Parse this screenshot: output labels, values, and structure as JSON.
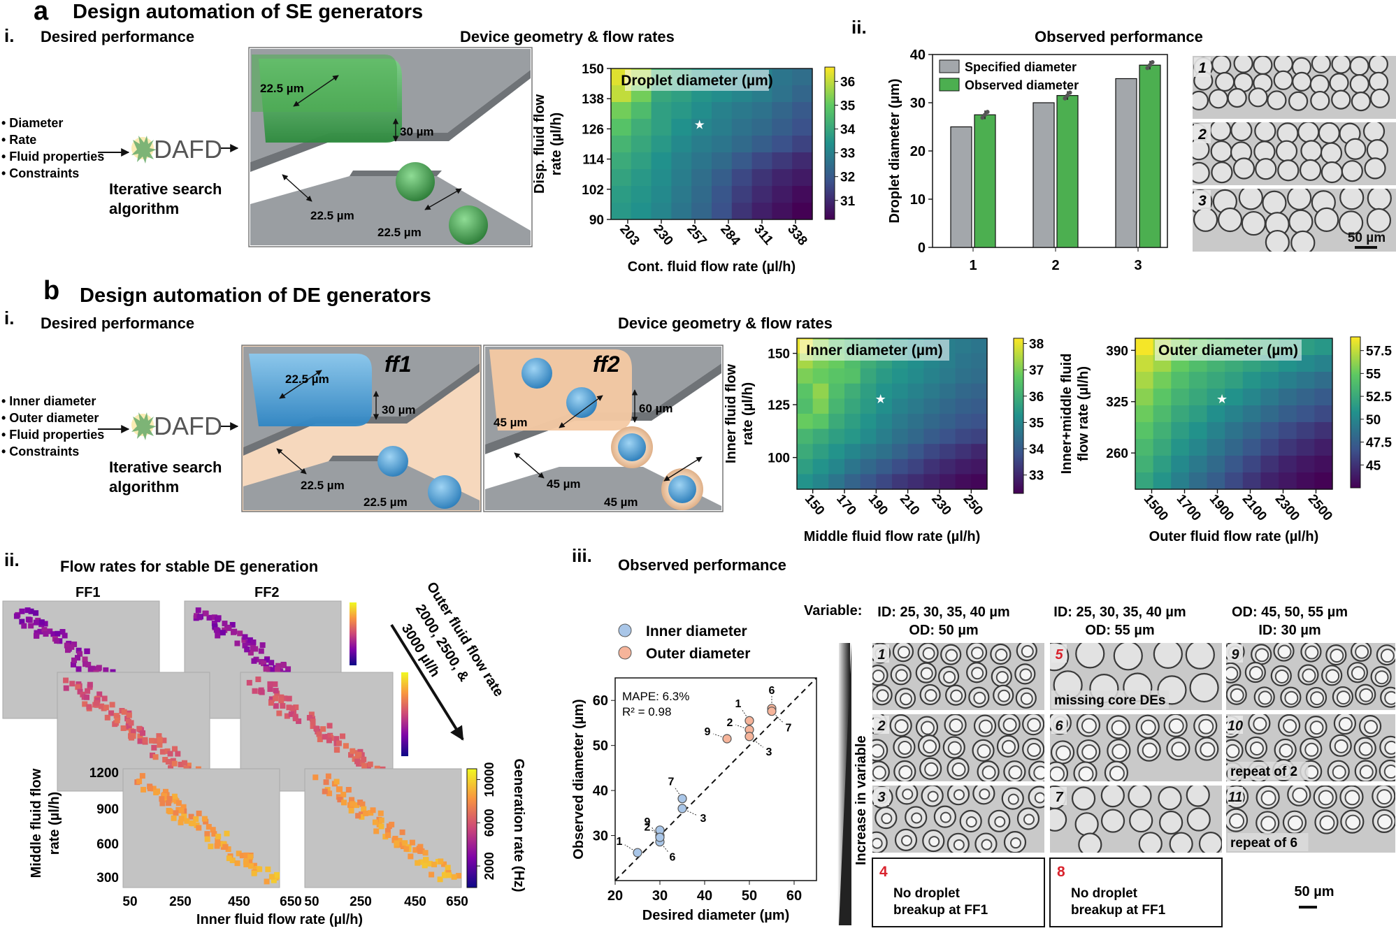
{
  "panel_a": {
    "letter": "a",
    "title": "Design automation of SE generators",
    "sub_i": "i.",
    "sub_ii": "ii.",
    "desired_title": "Desired performance",
    "inputs": [
      "• Diameter",
      "• Rate",
      "• Fluid properties",
      "• Constraints"
    ],
    "dafd": "DAFD",
    "algo_1": "Iterative search",
    "algo_2": "algorithm",
    "geometry_title": "Device geometry & flow rates",
    "device_dims": {
      "w1": "22.5 µm",
      "h": "30 µm",
      "w2": "22.5 µm",
      "w3": "22.5 µm"
    },
    "observed_title": "Observed performance",
    "micrograph_labels": [
      "1",
      "2",
      "3"
    ],
    "scale_bar": "50 µm"
  },
  "panel_b": {
    "letter": "b",
    "title": "Design automation of DE generators",
    "sub_i": "i.",
    "sub_ii": "ii.",
    "sub_iii": "iii.",
    "desired_title": "Desired performance",
    "inputs": [
      "• Inner diameter",
      "• Outer diameter",
      "• Fluid properties",
      "• Constraints"
    ],
    "dafd": "DAFD",
    "algo_1": "Iterative search",
    "algo_2": "algorithm",
    "geometry_title": "Device geometry & flow rates",
    "ff1": {
      "label": "ff1",
      "w1": "22.5 µm",
      "h": "30 µm",
      "w2": "22.5 µm",
      "w3": "22.5 µm"
    },
    "ff2": {
      "label": "ff2",
      "w1": "45 µm",
      "h": "60 µm",
      "w2": "45 µm",
      "w3": "45 µm"
    },
    "stable_title": "Flow rates for stable DE generation",
    "ff1_label": "FF1",
    "ff2_label": "FF2",
    "outer_arrow_text": [
      "Outer fluid flow rate",
      "2000, 2500, &",
      "3000 µl/h"
    ],
    "observed_title": "Observed performance",
    "variable_label": "Variable:",
    "columns": [
      {
        "line1": "ID: 25, 30, 35, 40 µm",
        "line2": "OD: 50 µm"
      },
      {
        "line1": "ID: 25, 30, 35, 40 µm",
        "line2": "OD: 55 µm"
      },
      {
        "line1": "OD: 45, 50, 55 µm",
        "line2": "ID: 30 µm"
      }
    ],
    "increase_label": "Increase in variable",
    "tiles": [
      {
        "num": "1",
        "caption": ""
      },
      {
        "num": "5",
        "caption": "missing core DEs"
      },
      {
        "num": "9",
        "caption": ""
      },
      {
        "num": "2",
        "caption": ""
      },
      {
        "num": "6",
        "caption": ""
      },
      {
        "num": "10",
        "caption": "repeat of 2"
      },
      {
        "num": "3",
        "caption": ""
      },
      {
        "num": "7",
        "caption": ""
      },
      {
        "num": "11",
        "caption": "repeat of 6"
      }
    ],
    "failure_boxes": [
      {
        "num": "4",
        "line1": "No droplet",
        "line2": "breakup at FF1"
      },
      {
        "num": "8",
        "line1": "No droplet",
        "line2": "breakup at FF1"
      }
    ],
    "scale_bar": "50 µm"
  },
  "colors": {
    "green": "#4caf50",
    "blue": "#5aa9dc",
    "peach": "#f4c9a3",
    "gray": "#a3a7ab",
    "red": "#d9232d"
  },
  "chart_data": [
    {
      "id": "a_heatmap",
      "type": "heatmap",
      "title": "Droplet diameter (µm)",
      "xlabel": "Cont. fluid flow rate (µl/h)",
      "ylabel": [
        "Disp. fluid flow",
        "rate (µl/h)"
      ],
      "x_ticks": [
        "203",
        "230",
        "257",
        "284",
        "311",
        "338"
      ],
      "y_ticks": [
        "150",
        "138",
        "126",
        "114",
        "102",
        "90"
      ],
      "colorbar": {
        "ticks": [
          "36",
          "35",
          "34",
          "33",
          "32",
          "31"
        ],
        "range": [
          30.2,
          36.6
        ]
      },
      "grid": [
        [
          36.3,
          35.8,
          34.4,
          34.0,
          33.6,
          33.4,
          33.2,
          33.0,
          32.7,
          32.5
        ],
        [
          36.0,
          35.2,
          34.0,
          33.8,
          33.5,
          33.3,
          33.1,
          32.9,
          32.6,
          32.3
        ],
        [
          35.2,
          34.6,
          33.8,
          33.6,
          33.3,
          33.0,
          32.8,
          32.6,
          32.3,
          32.0
        ],
        [
          34.8,
          34.2,
          33.8,
          33.4,
          33.1,
          32.9,
          32.6,
          32.4,
          32.1,
          31.8
        ],
        [
          34.4,
          34.0,
          33.6,
          33.2,
          32.9,
          32.7,
          32.4,
          32.1,
          31.8,
          31.5
        ],
        [
          34.1,
          33.8,
          33.4,
          33.0,
          32.7,
          32.4,
          32.0,
          31.6,
          31.3,
          31.0
        ],
        [
          33.9,
          33.6,
          33.3,
          32.9,
          32.5,
          32.1,
          31.6,
          31.2,
          30.9,
          30.7
        ],
        [
          33.7,
          33.5,
          33.2,
          32.8,
          32.4,
          31.9,
          31.4,
          31.0,
          30.7,
          30.4
        ],
        [
          33.6,
          33.4,
          33.1,
          32.7,
          32.3,
          31.8,
          31.2,
          30.8,
          30.5,
          30.2
        ]
      ]
    },
    {
      "id": "a_bars",
      "type": "bar",
      "categories": [
        "1",
        "2",
        "3"
      ],
      "series": [
        {
          "name": "Specified diameter",
          "values": [
            25,
            30,
            35
          ]
        },
        {
          "name": "Observed diameter",
          "values": [
            27.5,
            31.5,
            37.8
          ]
        }
      ],
      "ylabel": "Droplet diameter (µm)",
      "y_ticks": [
        "0",
        "10",
        "20",
        "30",
        "40"
      ],
      "ylim": [
        0,
        40
      ]
    },
    {
      "id": "b_inner_heatmap",
      "type": "heatmap",
      "title": "Inner diameter (µm)",
      "xlabel": "Middle fluid flow rate (µl/h)",
      "ylabel": [
        "Inner fluid flow",
        "rate (µl/h)"
      ],
      "x_ticks": [
        "150",
        "170",
        "190",
        "210",
        "230",
        "250"
      ],
      "y_ticks": [
        "150",
        "125",
        "100"
      ],
      "colorbar": {
        "ticks": [
          "38",
          "37",
          "36",
          "35",
          "34",
          "33"
        ],
        "range": [
          32.3,
          38.2
        ]
      },
      "grid": [
        [
          38.0,
          37.2,
          36.6,
          36.2,
          35.9,
          35.6,
          35.4,
          35.2,
          35.0,
          34.8,
          34.7,
          34.6
        ],
        [
          37.4,
          37.0,
          36.8,
          36.4,
          36.0,
          35.7,
          35.4,
          35.2,
          35.0,
          34.8,
          34.6,
          34.5
        ],
        [
          37.0,
          36.8,
          36.6,
          36.5,
          35.8,
          35.5,
          35.3,
          35.1,
          34.9,
          34.7,
          34.5,
          34.4
        ],
        [
          36.6,
          37.2,
          36.4,
          36.0,
          35.6,
          35.3,
          35.1,
          34.9,
          34.7,
          34.5,
          34.3,
          34.2
        ],
        [
          36.4,
          37.0,
          36.2,
          35.8,
          35.5,
          35.2,
          34.9,
          34.7,
          34.5,
          34.3,
          34.1,
          34.0
        ],
        [
          36.8,
          36.6,
          35.9,
          35.6,
          35.3,
          35.0,
          34.7,
          34.5,
          34.3,
          34.1,
          33.9,
          33.8
        ],
        [
          36.2,
          35.9,
          35.6,
          35.4,
          35.1,
          34.8,
          34.5,
          34.3,
          34.0,
          33.8,
          33.6,
          33.5
        ],
        [
          35.9,
          35.6,
          35.3,
          35.0,
          34.7,
          34.5,
          34.2,
          33.9,
          33.6,
          33.4,
          33.2,
          33.0
        ],
        [
          35.6,
          35.3,
          35.0,
          34.6,
          34.3,
          34.0,
          33.7,
          33.5,
          33.2,
          33.0,
          32.8,
          32.7
        ],
        [
          35.3,
          35.0,
          34.6,
          34.2,
          33.9,
          33.6,
          33.3,
          33.1,
          32.9,
          32.7,
          32.5,
          32.4
        ]
      ]
    },
    {
      "id": "b_outer_heatmap",
      "type": "heatmap",
      "title": "Outer diameter (µm)",
      "xlabel": "Outer fluid flow rate (µl/h)",
      "ylabel": [
        "Inner+middle fluid",
        "flow rate (µl/h)"
      ],
      "x_ticks": [
        "1500",
        "1700",
        "1900",
        "2100",
        "2300",
        "2500"
      ],
      "y_ticks": [
        "390",
        "325",
        "260"
      ],
      "colorbar": {
        "ticks": [
          "57.5",
          "55",
          "52.5",
          "50",
          "47.5",
          "45"
        ],
        "range": [
          42.5,
          59
        ]
      },
      "grid": [
        [
          58.8,
          57.0,
          55.8,
          55.0,
          54.4,
          53.8,
          53.2,
          52.6,
          52.0,
          51.6,
          51.2
        ],
        [
          57.6,
          56.6,
          55.0,
          54.0,
          53.2,
          52.6,
          52.0,
          51.4,
          50.8,
          50.3,
          49.8
        ],
        [
          56.8,
          55.4,
          54.0,
          53.0,
          52.4,
          51.8,
          51.0,
          50.3,
          49.6,
          49.0,
          48.4
        ],
        [
          56.0,
          54.6,
          53.2,
          52.4,
          51.6,
          50.8,
          50.0,
          49.2,
          48.4,
          47.8,
          47.2
        ],
        [
          55.2,
          53.8,
          52.4,
          51.6,
          50.6,
          49.8,
          49.0,
          48.2,
          47.4,
          46.8,
          46.2
        ],
        [
          54.4,
          53.0,
          51.6,
          50.8,
          49.8,
          48.8,
          48.0,
          47.0,
          46.2,
          45.6,
          45.0
        ],
        [
          53.6,
          52.4,
          51.0,
          50.0,
          49.0,
          48.0,
          47.0,
          46.0,
          45.2,
          44.6,
          44.0
        ],
        [
          53.0,
          51.6,
          50.2,
          49.2,
          48.2,
          47.0,
          46.0,
          45.0,
          44.2,
          43.6,
          43.2
        ],
        [
          52.2,
          51.0,
          49.6,
          48.4,
          47.4,
          46.2,
          45.2,
          44.2,
          43.6,
          43.0,
          42.6
        ]
      ]
    },
    {
      "id": "b_stable_maps",
      "type": "heatmap",
      "xlabel": "Inner fluid flow rate (µl/h)",
      "ylabel": [
        "Middle fluid flow",
        "rate (µl/h)"
      ],
      "x_ticks": [
        "50",
        "250",
        "450",
        "650"
      ],
      "y_ticks": [
        "1200",
        "900",
        "600",
        "300"
      ],
      "colorbar": {
        "label": "Generation rate (Hz)",
        "ticks": [
          "10000",
          "6000",
          "2000"
        ],
        "range": [
          0,
          11000
        ]
      }
    },
    {
      "id": "b_scatter",
      "type": "scatter",
      "xlabel": "Desired diameter (µm)",
      "ylabel": "Observed diameter (µm)",
      "x_ticks": [
        "20",
        "30",
        "40",
        "50",
        "60"
      ],
      "y_ticks": [
        "30",
        "40",
        "50",
        "60"
      ],
      "xlim": [
        20,
        65
      ],
      "ylim": [
        20,
        65
      ],
      "annotation": [
        "MAPE: 6.3%",
        "R² = 0.98"
      ],
      "series": [
        {
          "name": "Inner diameter",
          "color": "#a9c6e8",
          "points": [
            {
              "label": "1",
              "x": 25,
              "y": 26.2
            },
            {
              "label": "2",
              "x": 30,
              "y": 30.0
            },
            {
              "label": "",
              "x": 30,
              "y": 31.2
            },
            {
              "label": "6",
              "x": 30,
              "y": 28.6
            },
            {
              "label": "9",
              "x": 30,
              "y": 29.6
            },
            {
              "label": "3",
              "x": 35,
              "y": 36.0
            },
            {
              "label": "7",
              "x": 35,
              "y": 38.2
            }
          ]
        },
        {
          "name": "Outer diameter",
          "color": "#f6b49a",
          "points": [
            {
              "label": "9",
              "x": 45,
              "y": 51.5
            },
            {
              "label": "2",
              "x": 50,
              "y": 53.5
            },
            {
              "label": "1",
              "x": 50,
              "y": 55.5
            },
            {
              "label": "3",
              "x": 50,
              "y": 52.0
            },
            {
              "label": "6",
              "x": 55,
              "y": 58.2
            },
            {
              "label": "7",
              "x": 55,
              "y": 57.6
            }
          ]
        }
      ]
    }
  ]
}
